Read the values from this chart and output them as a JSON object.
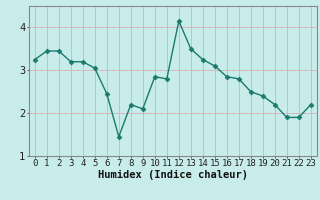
{
  "x": [
    0,
    1,
    2,
    3,
    4,
    5,
    6,
    7,
    8,
    9,
    10,
    11,
    12,
    13,
    14,
    15,
    16,
    17,
    18,
    19,
    20,
    21,
    22,
    23
  ],
  "y": [
    3.25,
    3.45,
    3.45,
    3.2,
    3.2,
    3.05,
    2.45,
    1.45,
    2.2,
    2.1,
    2.85,
    2.8,
    4.15,
    3.5,
    3.25,
    3.1,
    2.85,
    2.8,
    2.5,
    2.4,
    2.2,
    1.9,
    1.9,
    2.2
  ],
  "line_color": "#1a7a6e",
  "marker": "D",
  "marker_size": 2.5,
  "linewidth": 1.0,
  "xlabel": "Humidex (Indice chaleur)",
  "xlim": [
    -0.5,
    23.5
  ],
  "ylim": [
    1.0,
    4.5
  ],
  "yticks": [
    1,
    2,
    3,
    4
  ],
  "xticks": [
    0,
    1,
    2,
    3,
    4,
    5,
    6,
    7,
    8,
    9,
    10,
    11,
    12,
    13,
    14,
    15,
    16,
    17,
    18,
    19,
    20,
    21,
    22,
    23
  ],
  "bg_color": "#c8ecea",
  "grid_color": "#d8b0b8",
  "spine_color": "#888888",
  "xlabel_fontsize": 7.5,
  "tick_fontsize": 6.5,
  "ytick_fontsize": 7.5,
  "figsize": [
    3.2,
    2.0
  ],
  "dpi": 100
}
